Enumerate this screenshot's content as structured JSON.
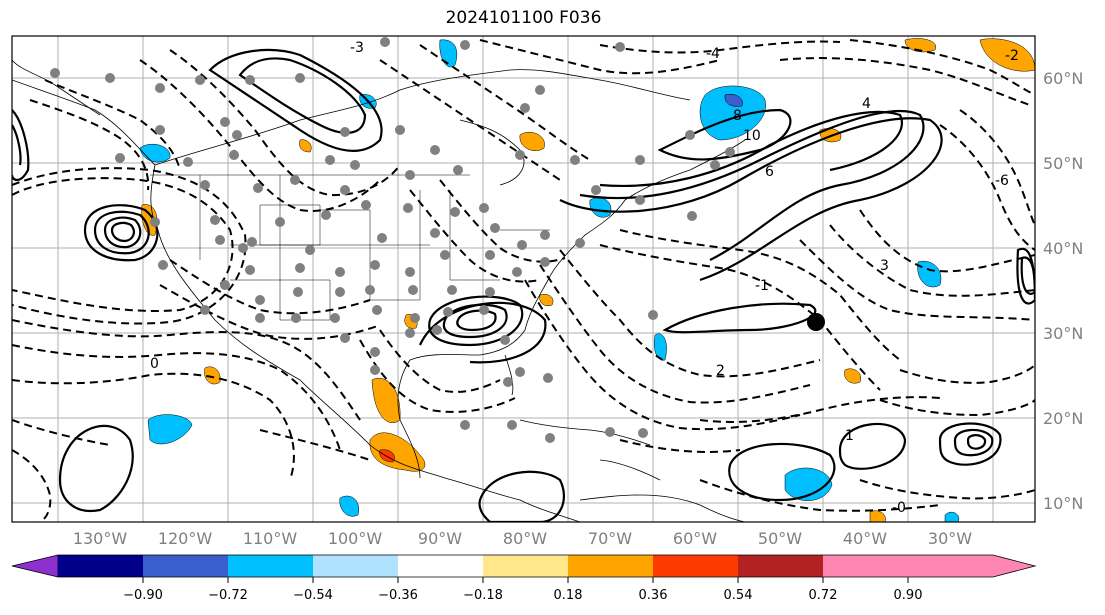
{
  "title": "2024101100 F036",
  "lat_labels": [
    "60°N",
    "50°N",
    "40°N",
    "30°N",
    "20°N",
    "10°N"
  ],
  "lon_labels": [
    "130°W",
    "120°W",
    "110°W",
    "100°W",
    "90°W",
    "80°W",
    "70°W",
    "60°W",
    "50°W",
    "40°W",
    "30°W"
  ],
  "colorbar": {
    "colors": [
      "#8e2fd0",
      "#00008b",
      "#3a5fcd",
      "#00bfff",
      "#b0e2ff",
      "#ffffff",
      "#ffe78a",
      "#ffa500",
      "#ff3a00",
      "#b22222",
      "#ff85b3"
    ],
    "tick_labels": [
      "−0.90",
      "−0.72",
      "−0.54",
      "−0.36",
      "−0.18",
      "0.18",
      "0.36",
      "0.54",
      "0.72",
      "0.90"
    ],
    "extend": "both"
  },
  "contour_labels": [
    "-4",
    "4",
    "8",
    "10",
    "6",
    "-2",
    "-3",
    "3",
    "-1",
    "1",
    "2",
    "0",
    "-0",
    "-6"
  ],
  "colors": {
    "grid": "#b0b0b0",
    "state_lines": "#000000",
    "dots": "#808080"
  }
}
